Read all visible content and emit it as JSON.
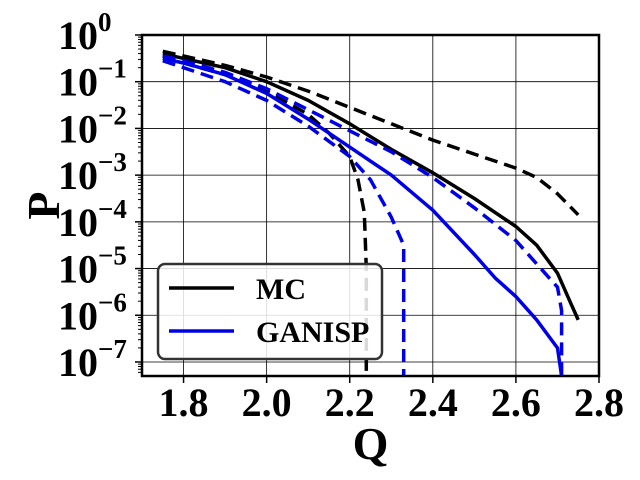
{
  "chart_data": {
    "type": "line",
    "xlabel": "Q",
    "ylabel": "P",
    "xlim": [
      1.7,
      2.8
    ],
    "ylim": [
      -7.3,
      0
    ],
    "y_scale": "log",
    "x_ticks": [
      "1.8",
      "2.0",
      "2.2",
      "2.4",
      "2.6",
      "2.8"
    ],
    "x_tick_values": [
      1.8,
      2.0,
      2.2,
      2.4,
      2.6,
      2.8
    ],
    "y_ticks": [
      {
        "value": 0,
        "base": "10",
        "exp": "0"
      },
      {
        "value": -1,
        "base": "10",
        "exp": "−1"
      },
      {
        "value": -2,
        "base": "10",
        "exp": "−2"
      },
      {
        "value": -3,
        "base": "10",
        "exp": "−3"
      },
      {
        "value": -4,
        "base": "10",
        "exp": "−4"
      },
      {
        "value": -5,
        "base": "10",
        "exp": "−5"
      },
      {
        "value": -6,
        "base": "10",
        "exp": "−6"
      },
      {
        "value": -7,
        "base": "10",
        "exp": "−7"
      }
    ],
    "grid": true,
    "legend": {
      "position": "lower-left",
      "entries": [
        {
          "label": "MC",
          "color": "#000000"
        },
        {
          "label": "GANISP",
          "color": "#0000e6"
        }
      ]
    },
    "series": [
      {
        "group": "MC",
        "style": "solid",
        "color": "#000000",
        "x": [
          1.75,
          1.8,
          1.9,
          2.0,
          2.1,
          2.2,
          2.3,
          2.4,
          2.5,
          2.6,
          2.65,
          2.7,
          2.73,
          2.75
        ],
        "log10_y": [
          -0.4,
          -0.5,
          -0.7,
          -1.0,
          -1.4,
          -1.9,
          -2.45,
          -2.95,
          -3.5,
          -4.1,
          -4.5,
          -5.1,
          -5.7,
          -6.1
        ]
      },
      {
        "group": "MC",
        "style": "dashed",
        "color": "#000000",
        "x": [
          1.75,
          1.8,
          1.9,
          2.0,
          2.1,
          2.2,
          2.3,
          2.4,
          2.5,
          2.6,
          2.65,
          2.7,
          2.75
        ],
        "log10_y": [
          -0.35,
          -0.45,
          -0.65,
          -0.9,
          -1.2,
          -1.55,
          -1.9,
          -2.25,
          -2.55,
          -2.85,
          -3.05,
          -3.4,
          -3.85
        ]
      },
      {
        "group": "MC",
        "style": "dashed",
        "color": "#000000",
        "x": [
          1.75,
          1.8,
          1.9,
          2.0,
          2.1,
          2.15,
          2.2,
          2.22,
          2.235,
          2.24,
          2.24
        ],
        "log10_y": [
          -0.45,
          -0.6,
          -0.85,
          -1.2,
          -1.7,
          -2.1,
          -2.6,
          -3.1,
          -3.8,
          -5.0,
          -7.3
        ]
      },
      {
        "group": "GANISP",
        "style": "solid",
        "color": "#0000e6",
        "x": [
          1.75,
          1.8,
          1.9,
          2.0,
          2.1,
          2.2,
          2.3,
          2.4,
          2.5,
          2.55,
          2.6,
          2.65,
          2.7,
          2.71
        ],
        "log10_y": [
          -0.5,
          -0.6,
          -0.85,
          -1.25,
          -1.8,
          -2.4,
          -3.0,
          -3.75,
          -4.7,
          -5.2,
          -5.6,
          -6.1,
          -6.7,
          -7.3
        ]
      },
      {
        "group": "GANISP",
        "style": "dashed",
        "color": "#0000e6",
        "x": [
          1.75,
          1.8,
          1.9,
          2.0,
          2.1,
          2.2,
          2.3,
          2.4,
          2.5,
          2.6,
          2.65,
          2.7,
          2.71,
          2.71
        ],
        "log10_y": [
          -0.45,
          -0.55,
          -0.8,
          -1.15,
          -1.6,
          -2.05,
          -2.5,
          -3.05,
          -3.7,
          -4.4,
          -4.9,
          -5.4,
          -5.9,
          -7.3
        ]
      },
      {
        "group": "GANISP",
        "style": "dashed",
        "color": "#0000e6",
        "x": [
          1.75,
          1.8,
          1.9,
          2.0,
          2.1,
          2.2,
          2.25,
          2.3,
          2.33,
          2.33
        ],
        "log10_y": [
          -0.55,
          -0.7,
          -1.0,
          -1.4,
          -1.95,
          -2.6,
          -3.1,
          -3.9,
          -4.5,
          -7.3
        ]
      }
    ]
  }
}
